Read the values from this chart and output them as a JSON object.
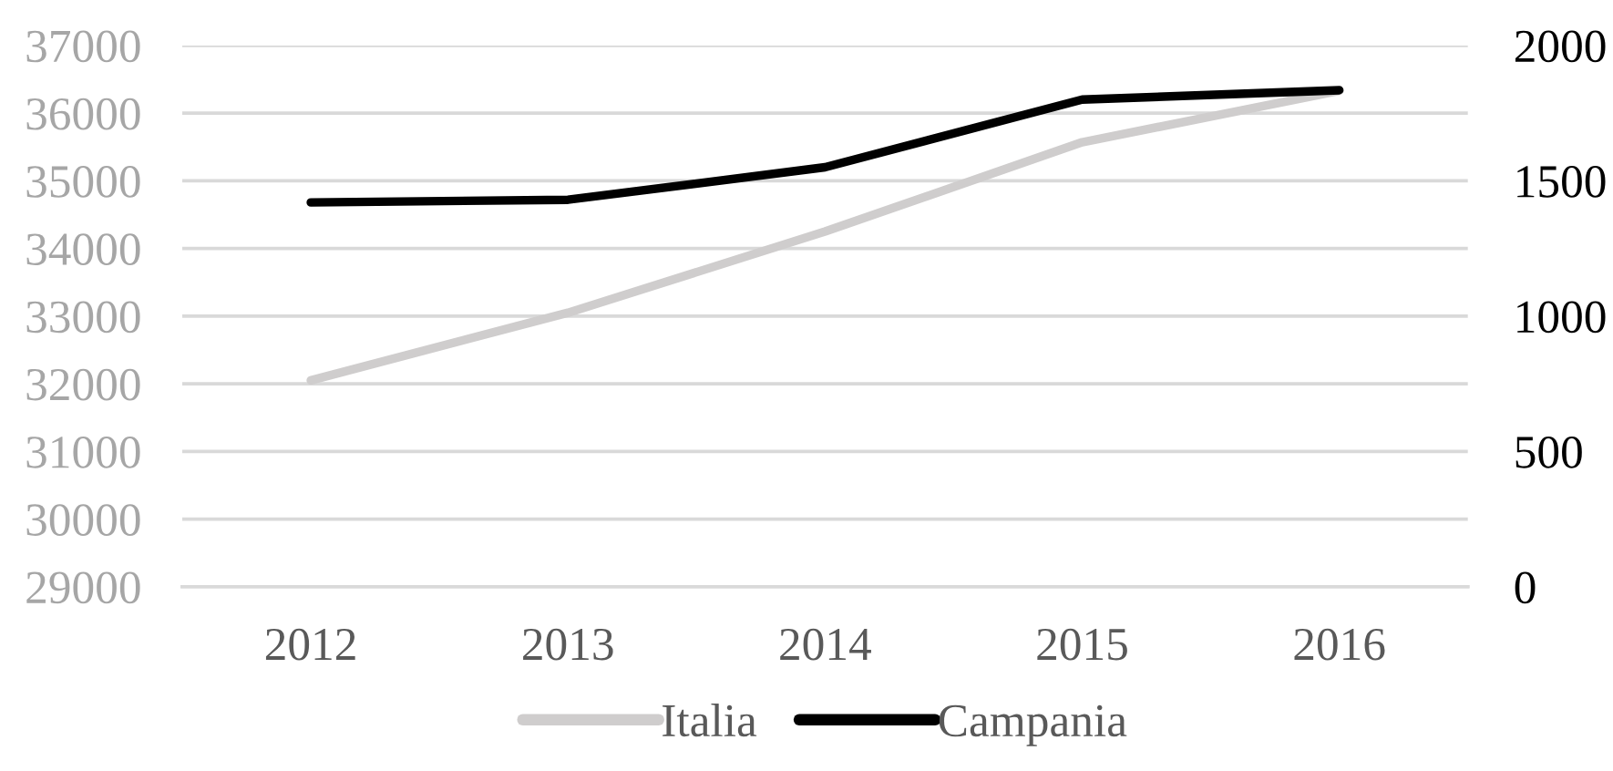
{
  "chart_data": {
    "type": "line",
    "categories": [
      "2012",
      "2013",
      "2014",
      "2015",
      "2016"
    ],
    "series": [
      {
        "name": "Italia",
        "color": "#cfcdcd",
        "values": [
          32050,
          33050,
          34250,
          35570,
          36330
        ]
      },
      {
        "name": "Campania",
        "color": "#000000",
        "axis": "y2",
        "values": [
          1420,
          1430,
          1550,
          1800,
          1835
        ]
      }
    ],
    "ylim": [
      29000,
      37000
    ],
    "yticks": [
      29000,
      30000,
      31000,
      32000,
      33000,
      34000,
      35000,
      36000,
      37000
    ],
    "y2lim": [
      0,
      2000
    ],
    "y2ticks": [
      0,
      500,
      1000,
      1500,
      2000
    ],
    "grid": "y",
    "legend": "bottom"
  }
}
